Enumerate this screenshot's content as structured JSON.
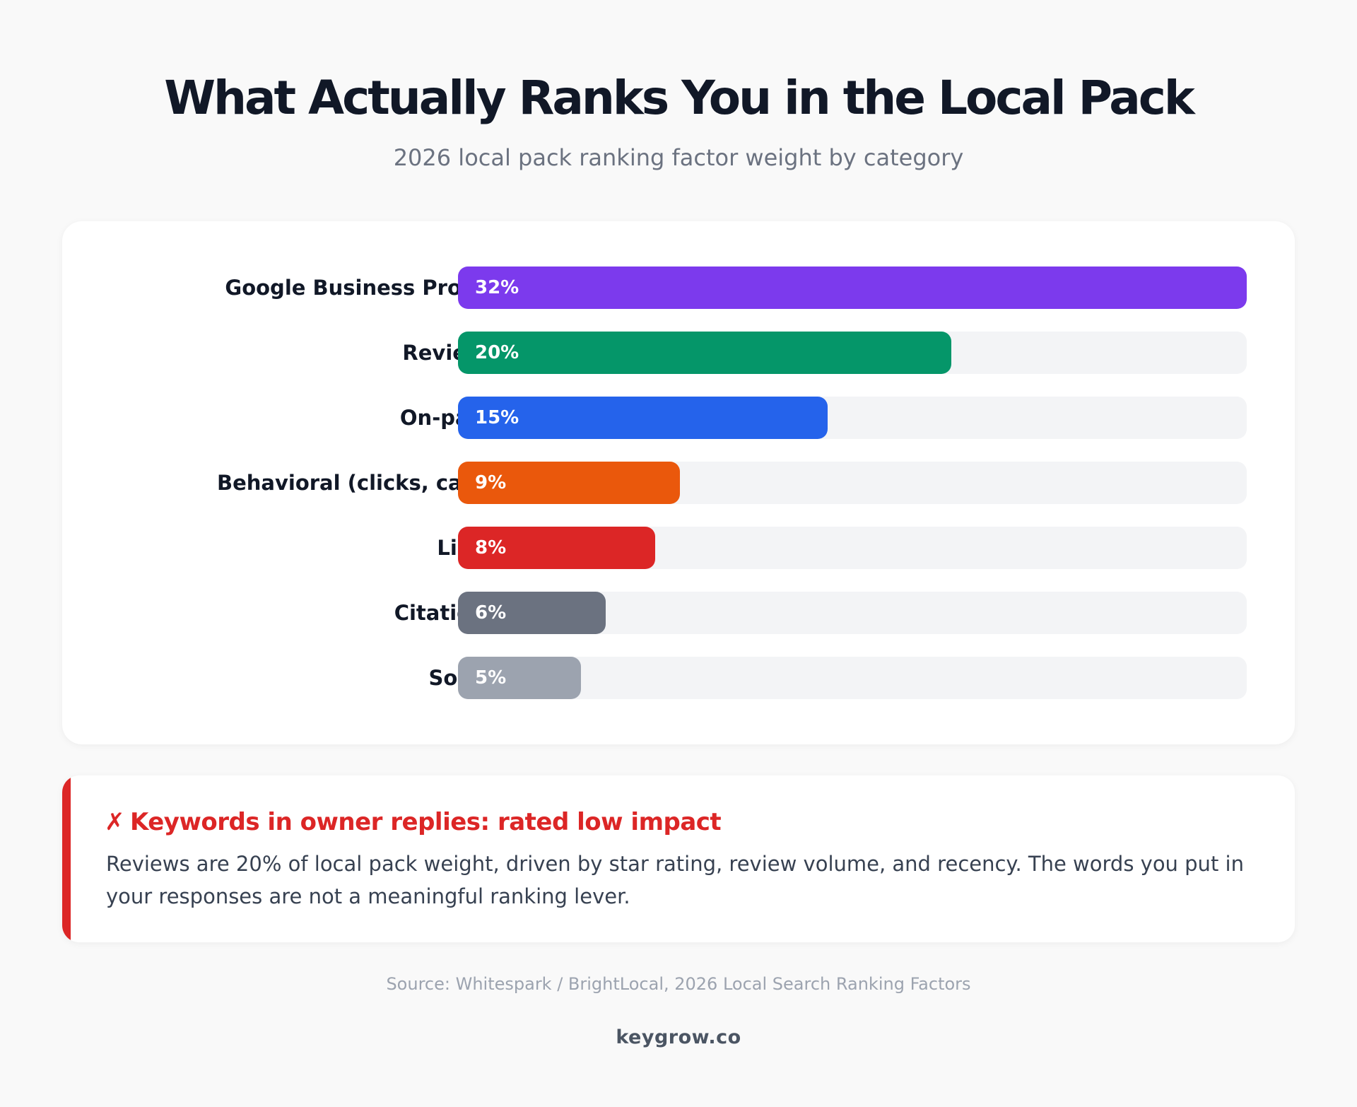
{
  "header": {
    "title": "What Actually Ranks You in the Local Pack",
    "subtitle": "2026 local pack ranking factor weight by category"
  },
  "chart_data": {
    "type": "bar",
    "orientation": "horizontal",
    "title": "What Actually Ranks You in the Local Pack",
    "subtitle": "2026 local pack ranking factor weight by category",
    "categories": [
      "Google Business Profile",
      "Reviews",
      "On-page",
      "Behavioral (clicks, calls)",
      "Links",
      "Citations",
      "Social"
    ],
    "values": [
      32,
      20,
      15,
      9,
      8,
      6,
      5
    ],
    "value_labels": [
      "32%",
      "20%",
      "15%",
      "9%",
      "8%",
      "6%",
      "5%"
    ],
    "colors": [
      "#7c3aed",
      "#059669",
      "#2563eb",
      "#ea580c",
      "#dc2626",
      "#6b7280",
      "#9ca3af"
    ],
    "track_color": "#f3f4f6",
    "xlim": [
      0,
      32
    ],
    "grid": false,
    "legend": "none"
  },
  "callout": {
    "mark": "✗",
    "heading": "Keywords in owner replies: rated low impact",
    "body": "Reviews are 20% of local pack weight, driven by star rating, review volume, and recency. The words you put in your responses are not a meaningful ranking lever.",
    "accent_color": "#dc2626"
  },
  "footer": {
    "source": "Source: Whitespark / BrightLocal, 2026 Local Search Ranking Factors",
    "brand": "keygrow.co"
  }
}
